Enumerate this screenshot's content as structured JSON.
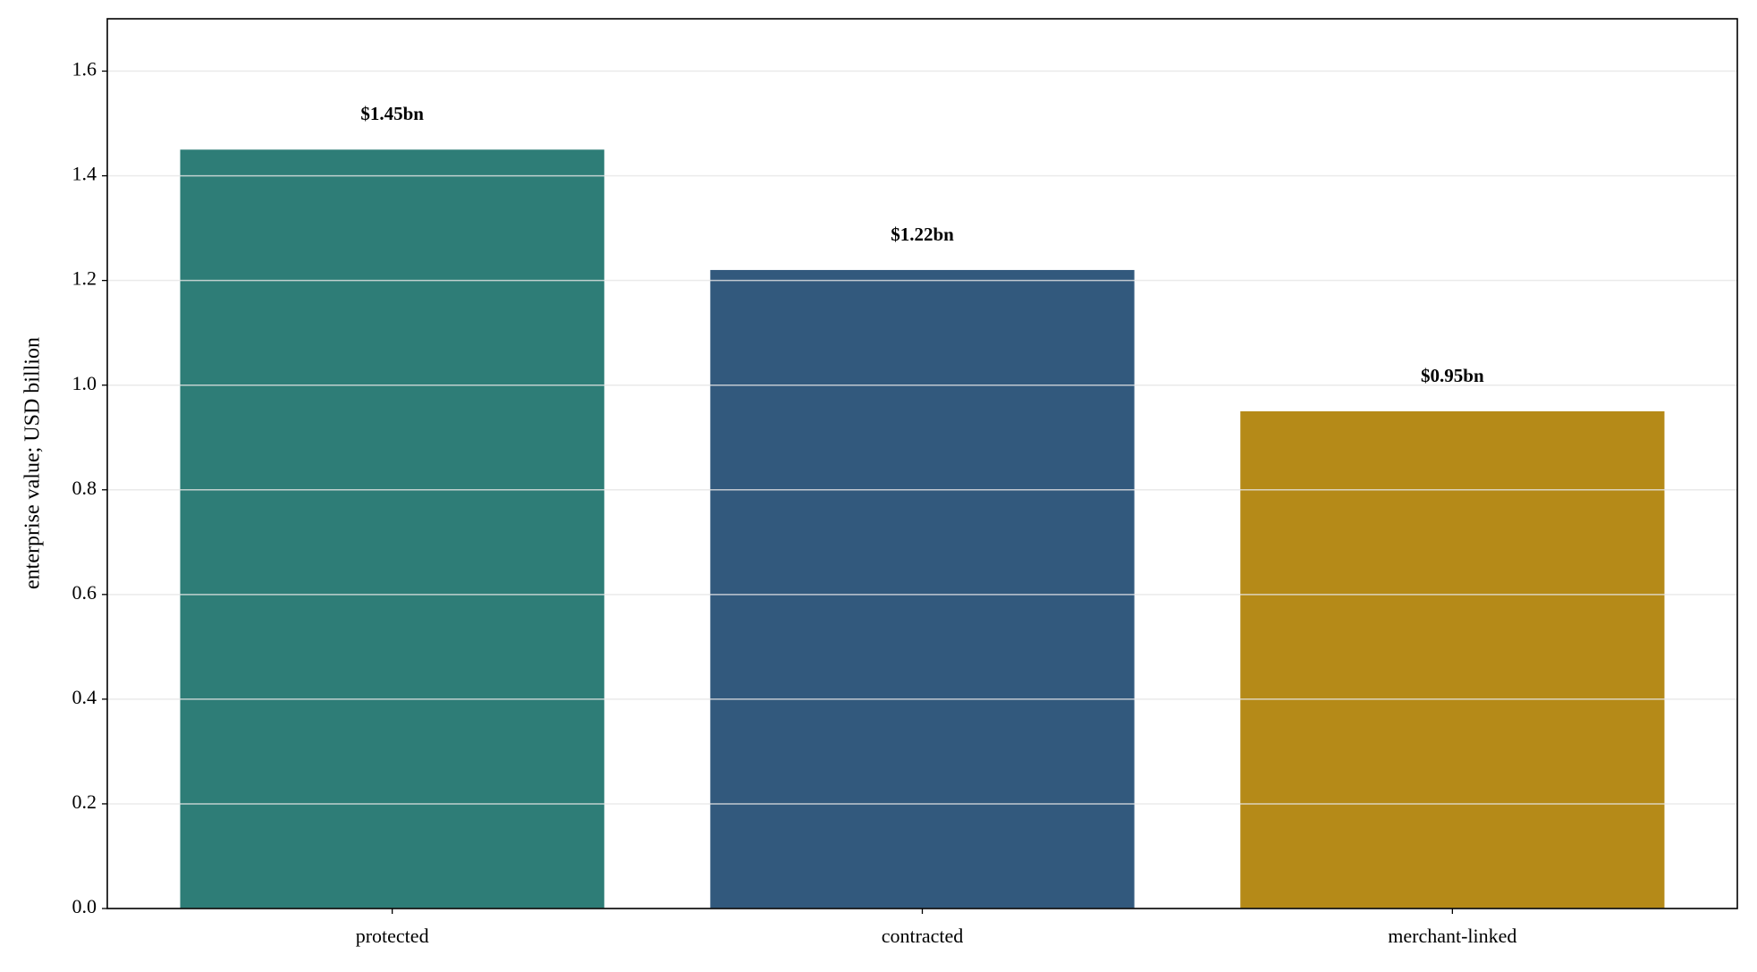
{
  "chart_data": {
    "type": "bar",
    "y_label": "enterprise value; USD billion",
    "categories": [
      "protected",
      "contracted",
      "merchant-linked"
    ],
    "values": [
      1.45,
      1.22,
      0.95
    ],
    "value_labels": [
      "$1.45bn",
      "$1.22bn",
      "$0.95bn"
    ],
    "colors": [
      "#2e7d77",
      "#32597d",
      "#b58a18"
    ],
    "ylim": [
      0,
      1.7
    ],
    "yticks": [
      {
        "value": 0,
        "label": "0.0"
      },
      {
        "value": 0.2,
        "label": "0.2"
      },
      {
        "value": 0.4,
        "label": "0.4"
      },
      {
        "value": 0.6,
        "label": "0.6"
      },
      {
        "value": 0.8,
        "label": "0.8"
      },
      {
        "value": 1,
        "label": "1.0"
      },
      {
        "value": 1.2,
        "label": "1.2"
      },
      {
        "value": 1.4,
        "label": "1.4"
      },
      {
        "value": 1.6,
        "label": "1.6"
      }
    ],
    "grid": true
  }
}
